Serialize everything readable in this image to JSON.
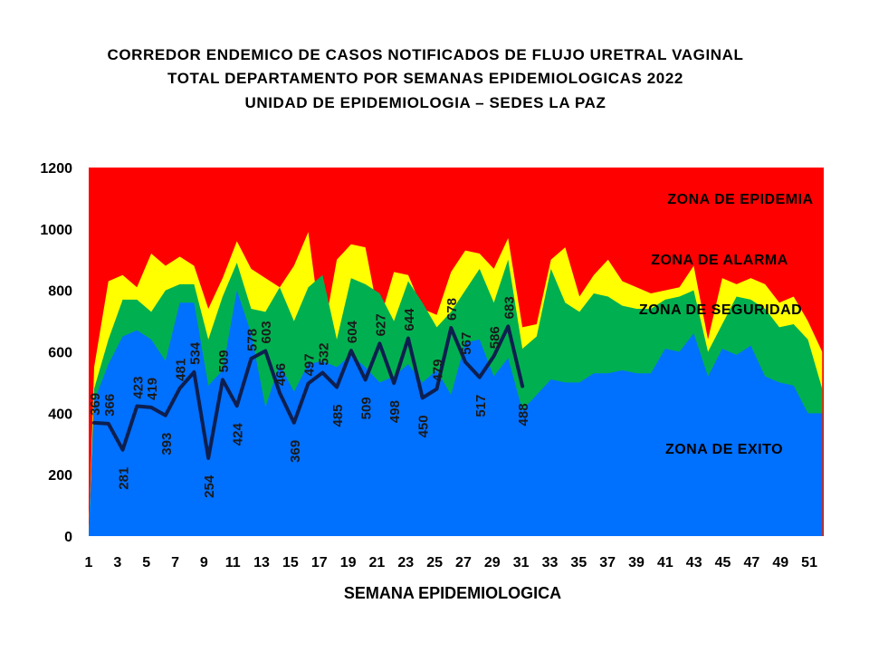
{
  "title_lines": [
    "CORREDOR ENDEMICO  DE CASOS NOTIFICADOS  DE FLUJO URETRAL VAGINAL",
    "TOTAL DEPARTAMENTO  POR SEMANAS EPIDEMIOLOGICAS  2022",
    "UNIDAD  DE EPIDEMIOLOGIA  – SEDES LA PAZ"
  ],
  "chart_data": {
    "type": "area",
    "title": "CORREDOR ENDEMICO  DE CASOS NOTIFICADOS  DE FLUJO URETRAL VAGINAL / TOTAL DEPARTAMENTO  POR SEMANAS EPIDEMIOLOGICAS  2022 / UNIDAD  DE EPIDEMIOLOGIA  – SEDES LA PAZ",
    "xlabel": "SEMANA EPIDEMIOLOGICA",
    "ylabel": "",
    "ylim": [
      0,
      1200
    ],
    "yticks": [
      0,
      200,
      400,
      600,
      800,
      1000,
      1200
    ],
    "xticks": [
      1,
      3,
      5,
      7,
      9,
      11,
      13,
      15,
      17,
      19,
      21,
      23,
      25,
      27,
      29,
      31,
      33,
      35,
      37,
      39,
      41,
      43,
      45,
      47,
      49,
      51
    ],
    "x": [
      1,
      2,
      3,
      4,
      5,
      6,
      7,
      8,
      9,
      10,
      11,
      12,
      13,
      14,
      15,
      16,
      17,
      18,
      19,
      20,
      21,
      22,
      23,
      24,
      25,
      26,
      27,
      28,
      29,
      30,
      31,
      32,
      33,
      34,
      35,
      36,
      37,
      38,
      39,
      40,
      41,
      42,
      43,
      44,
      45,
      46,
      47,
      48,
      49,
      50,
      51,
      52
    ],
    "zones": [
      {
        "name": "ZONA DE EPIDEMIA",
        "color": "#ff0000",
        "values": [
          1200,
          1200,
          1200,
          1200,
          1200,
          1200,
          1200,
          1200,
          1200,
          1200,
          1200,
          1200,
          1200,
          1200,
          1200,
          1200,
          1200,
          1200,
          1200,
          1200,
          1200,
          1200,
          1200,
          1200,
          1200,
          1200,
          1200,
          1200,
          1200,
          1200,
          1200,
          1200,
          1200,
          1200,
          1200,
          1200,
          1200,
          1200,
          1200,
          1200,
          1200,
          1200,
          1200,
          1200,
          1200,
          1200,
          1200,
          1200,
          1200,
          1200,
          1200,
          1200
        ]
      },
      {
        "name": "ZONA DE ALARMA",
        "color": "#ffff00",
        "values": [
          550,
          830,
          850,
          810,
          920,
          880,
          910,
          880,
          740,
          840,
          960,
          870,
          840,
          810,
          880,
          990,
          640,
          900,
          950,
          940,
          700,
          860,
          850,
          740,
          720,
          860,
          930,
          920,
          870,
          970,
          680,
          690,
          900,
          940,
          780,
          850,
          900,
          830,
          810,
          790,
          800,
          810,
          880,
          640,
          840,
          820,
          840,
          820,
          760,
          780,
          700,
          600
        ]
      },
      {
        "name": "ZONA DE  SEGURIDAD",
        "color": "#00b050",
        "values": [
          480,
          640,
          770,
          770,
          730,
          800,
          820,
          820,
          640,
          780,
          890,
          740,
          730,
          810,
          700,
          810,
          850,
          640,
          840,
          820,
          790,
          700,
          830,
          760,
          680,
          730,
          800,
          870,
          760,
          900,
          610,
          650,
          870,
          760,
          730,
          790,
          780,
          750,
          740,
          740,
          770,
          780,
          800,
          600,
          690,
          780,
          770,
          740,
          680,
          690,
          640,
          480
        ]
      },
      {
        "name": "ZONA DE  EXITO",
        "color": "#0070ff",
        "values": [
          440,
          560,
          650,
          670,
          640,
          570,
          760,
          760,
          490,
          540,
          800,
          660,
          420,
          560,
          470,
          560,
          570,
          550,
          590,
          550,
          500,
          520,
          560,
          500,
          540,
          460,
          630,
          640,
          520,
          580,
          410,
          460,
          510,
          500,
          500,
          530,
          530,
          540,
          530,
          530,
          610,
          600,
          660,
          520,
          610,
          590,
          620,
          520,
          500,
          490,
          400,
          400
        ]
      }
    ],
    "cases_2022": {
      "name": "2022",
      "color": "#0d1f4f",
      "x": [
        1,
        2,
        3,
        4,
        5,
        6,
        7,
        8,
        9,
        10,
        11,
        12,
        13,
        14,
        15,
        16,
        17,
        18,
        19,
        20,
        21,
        22,
        23,
        24,
        25,
        26,
        27,
        28,
        29,
        30,
        31
      ],
      "values": [
        369,
        366,
        281,
        423,
        419,
        393,
        481,
        534,
        254,
        509,
        424,
        578,
        603,
        466,
        369,
        497,
        532,
        485,
        604,
        509,
        627,
        498,
        644,
        450,
        479,
        678,
        567,
        517,
        586,
        683,
        488
      ]
    }
  }
}
